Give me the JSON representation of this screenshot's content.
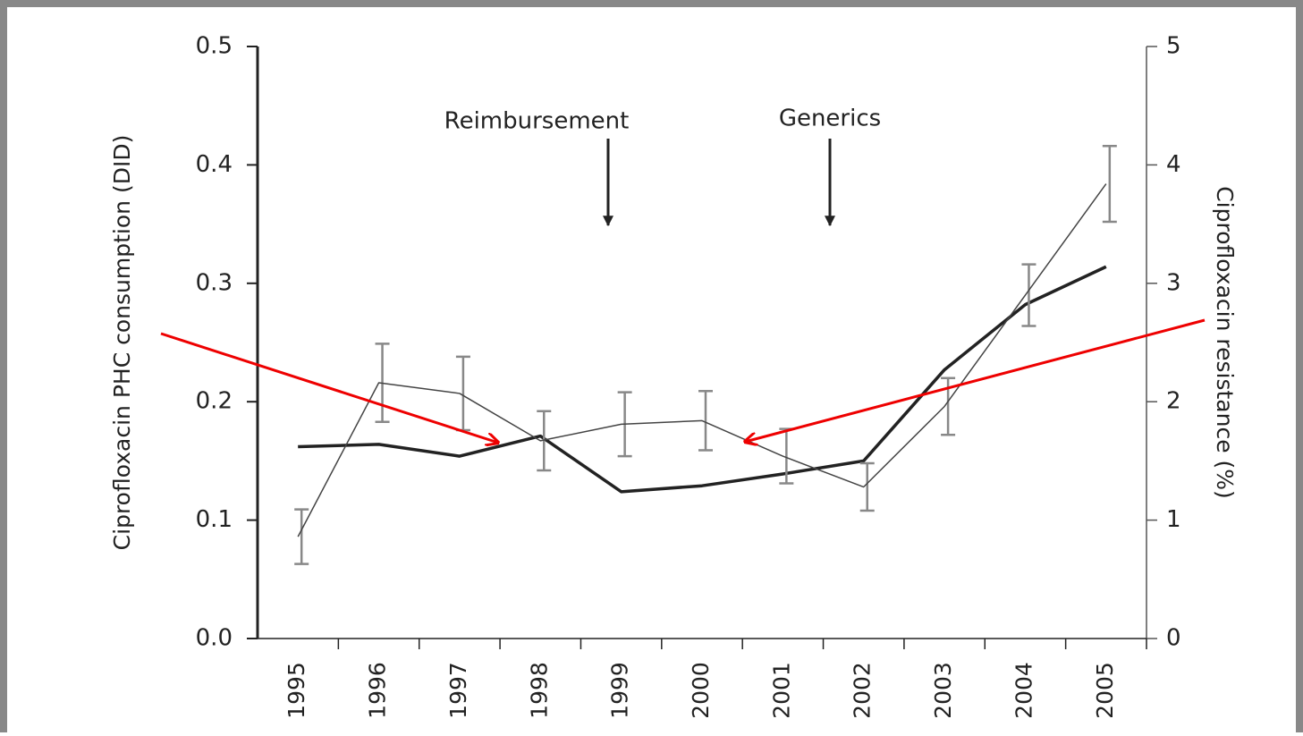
{
  "chart_data": {
    "type": "line",
    "ylabel": "Ciprofloxacin PHC consumption (DID)",
    "y2label": "Ciprofloxacin resistance (%)",
    "annotations": [
      "Reimbursement",
      "Generics"
    ],
    "categories": [
      "1995",
      "1996",
      "1997",
      "1998",
      "1999",
      "2000",
      "2001",
      "2002",
      "2003",
      "2004",
      "2005"
    ],
    "series": [
      {
        "color": "#222222",
        "width": 3.5,
        "axis": "y",
        "values": [
          0.162,
          0.164,
          0.154,
          0.171,
          0.124,
          0.129,
          0.139,
          0.15,
          0.227,
          0.282,
          0.314
        ]
      },
      {
        "color": "#444444",
        "width": 1.5,
        "axis": "y2",
        "error_color": "#888888",
        "values": [
          0.86,
          2.16,
          2.07,
          1.67,
          1.81,
          1.84,
          1.54,
          1.28,
          1.96,
          2.9,
          3.84
        ],
        "errors": [
          0.23,
          0.33,
          0.31,
          0.25,
          0.27,
          0.25,
          0.23,
          0.2,
          0.24,
          0.26,
          0.32
        ]
      }
    ],
    "ylim": [
      0,
      0.5
    ],
    "yticks": [
      {
        "value": 0,
        "label": "0.0"
      },
      0.1,
      0.2,
      0.3,
      0.4,
      0.5
    ],
    "y2lim": [
      0,
      5
    ],
    "y2ticks": [
      0,
      1,
      2,
      3,
      4,
      5
    ]
  }
}
